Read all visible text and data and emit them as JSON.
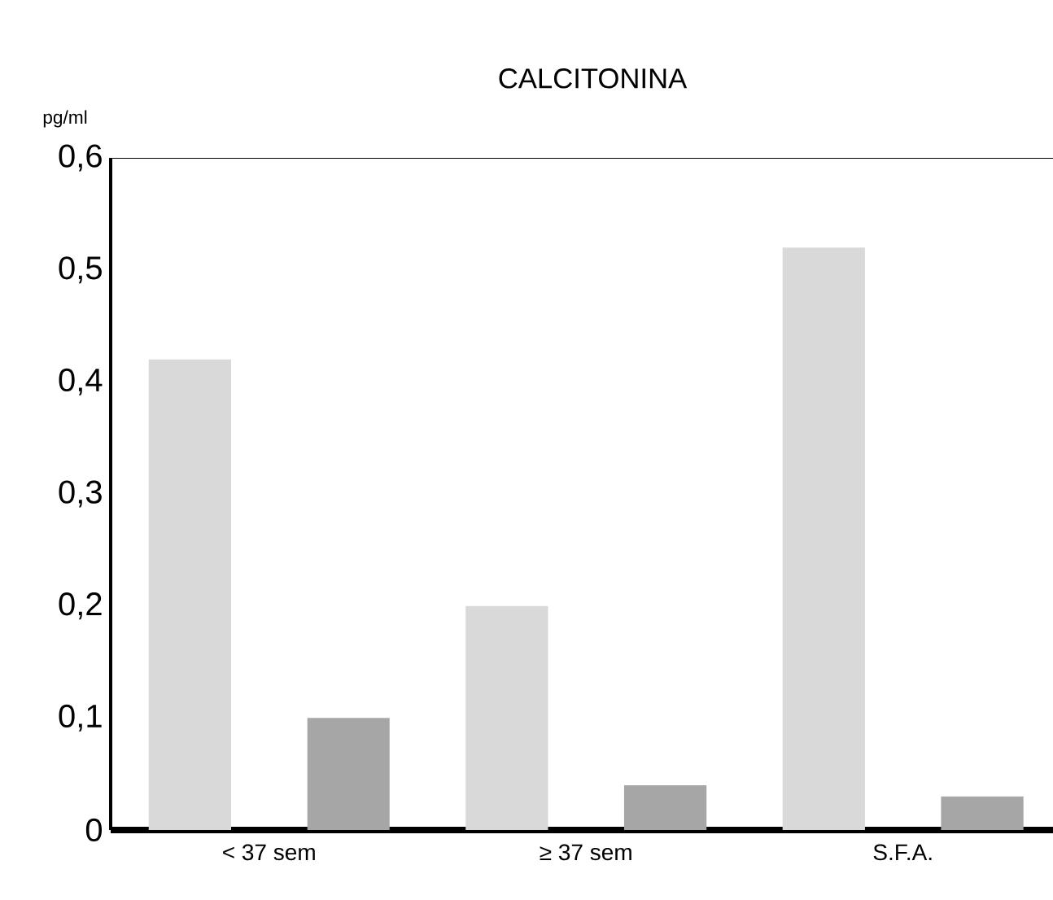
{
  "chart_data": {
    "type": "bar",
    "title": "CALCITONINA",
    "ylabel": "pg/ml",
    "categories": [
      "< 37 sem",
      "≥ 37 sem",
      "S.F.A."
    ],
    "series": [
      {
        "color": "#d9d9d9",
        "values": [
          0.42,
          0.2,
          0.52
        ]
      },
      {
        "color": "#a6a6a6",
        "values": [
          0.1,
          0.04,
          0.03
        ]
      }
    ],
    "ylim": [
      0,
      0.6
    ],
    "yticks": [
      {
        "value": 0,
        "label": "0"
      },
      {
        "value": 0.1,
        "label": "0,1"
      },
      {
        "value": 0.2,
        "label": "0,2"
      },
      {
        "value": 0.3,
        "label": "0,3"
      },
      {
        "value": 0.4,
        "label": "0,4"
      },
      {
        "value": 0.5,
        "label": "0,5"
      },
      {
        "value": 0.6,
        "label": "0,6"
      }
    ],
    "grid": false
  }
}
